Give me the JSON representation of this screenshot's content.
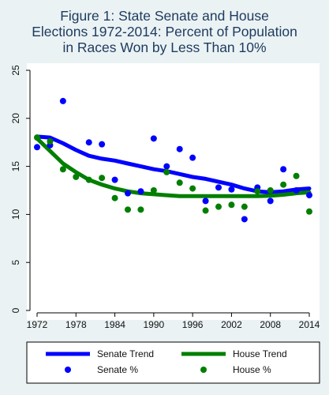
{
  "chart_data": {
    "type": "scatter",
    "title_lines": [
      "Figure 1: State Senate and House",
      "Elections 1972-2014: Percent of Population",
      "in Races Won by Less Than 10%"
    ],
    "xlabel": "",
    "ylabel": "",
    "xlim": [
      1971,
      2015
    ],
    "ylim": [
      0,
      25
    ],
    "x_ticks": [
      1972,
      1978,
      1984,
      1990,
      1996,
      2002,
      2008,
      2014
    ],
    "y_ticks": [
      0,
      5,
      10,
      15,
      20,
      25
    ],
    "grid": false,
    "legend_position": "bottom",
    "colors": {
      "senate": "#0000FF",
      "house": "#007F00",
      "plot_background": "#FFFFFF",
      "outer_background": "#EAF2F3",
      "title": "#1E3A5F"
    },
    "series": [
      {
        "name": "Senate %",
        "kind": "points",
        "color": "#0000FF",
        "x": [
          1972,
          1974,
          1976,
          1980,
          1982,
          1984,
          1986,
          1988,
          1990,
          1992,
          1994,
          1996,
          1998,
          2000,
          2002,
          2004,
          2006,
          2008,
          2010,
          2012,
          2014
        ],
        "y": [
          17.0,
          17.2,
          21.8,
          17.5,
          17.3,
          13.6,
          12.2,
          12.4,
          17.9,
          15.0,
          16.8,
          15.9,
          11.4,
          12.8,
          12.6,
          9.5,
          12.8,
          11.4,
          14.7,
          12.5,
          12.0
        ]
      },
      {
        "name": "House %",
        "kind": "points",
        "color": "#007F00",
        "x": [
          1972,
          1974,
          1976,
          1978,
          1980,
          1982,
          1984,
          1986,
          1988,
          1990,
          1992,
          1994,
          1996,
          1998,
          2000,
          2002,
          2004,
          2006,
          2008,
          2010,
          2012,
          2014
        ],
        "y": [
          18.0,
          17.6,
          14.7,
          13.9,
          13.6,
          13.8,
          11.7,
          10.5,
          10.5,
          12.5,
          14.4,
          13.3,
          12.7,
          10.4,
          10.8,
          11.0,
          10.8,
          12.4,
          12.5,
          13.1,
          14.0,
          10.3
        ]
      },
      {
        "name": "Senate Trend",
        "kind": "line",
        "color": "#0000FF",
        "x": [
          1972,
          1974,
          1976,
          1978,
          1980,
          1982,
          1984,
          1986,
          1988,
          1990,
          1992,
          1994,
          1996,
          1998,
          2000,
          2002,
          2004,
          2006,
          2008,
          2010,
          2012,
          2014
        ],
        "y": [
          18.1,
          18.0,
          17.4,
          16.7,
          16.1,
          15.8,
          15.6,
          15.3,
          15.0,
          14.7,
          14.5,
          14.2,
          13.9,
          13.7,
          13.4,
          13.1,
          12.7,
          12.4,
          12.3,
          12.4,
          12.6,
          12.7
        ]
      },
      {
        "name": "House Trend",
        "kind": "line",
        "color": "#007F00",
        "x": [
          1972,
          1974,
          1976,
          1978,
          1980,
          1982,
          1984,
          1986,
          1988,
          1990,
          1992,
          1994,
          1996,
          1998,
          2000,
          2002,
          2004,
          2006,
          2008,
          2010,
          2012,
          2014
        ],
        "y": [
          17.9,
          16.6,
          15.3,
          14.4,
          13.6,
          13.1,
          12.7,
          12.4,
          12.2,
          12.1,
          12.0,
          11.9,
          11.9,
          11.9,
          11.9,
          11.9,
          11.9,
          11.9,
          11.95,
          12.05,
          12.2,
          12.3
        ]
      }
    ],
    "legend": [
      {
        "label": "Senate Trend",
        "kind": "line",
        "color": "#0000FF"
      },
      {
        "label": "House Trend",
        "kind": "line",
        "color": "#007F00"
      },
      {
        "label": "Senate %",
        "kind": "point",
        "color": "#0000FF"
      },
      {
        "label": "House %",
        "kind": "point",
        "color": "#007F00"
      }
    ]
  }
}
